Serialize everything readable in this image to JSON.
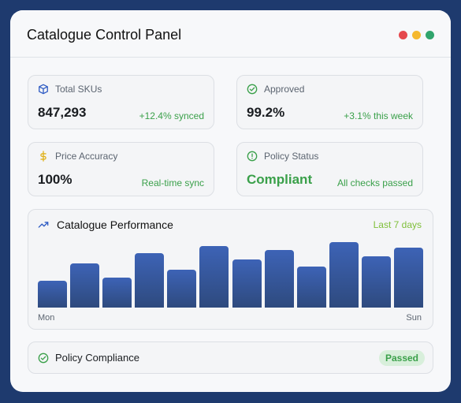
{
  "window": {
    "title": "Catalogue Control Panel",
    "controls": [
      {
        "name": "close",
        "color": "#e5484d"
      },
      {
        "name": "minimize",
        "color": "#f5b82e"
      },
      {
        "name": "maximize",
        "color": "#30a46c"
      }
    ]
  },
  "stats": [
    {
      "label": "Total SKUs",
      "value": "847,293",
      "sub": "+12.4% synced",
      "icon": "box-icon"
    },
    {
      "label": "Approved",
      "value": "99.2%",
      "sub": "+3.1% this week",
      "icon": "check-circle-icon"
    },
    {
      "label": "Price Accuracy",
      "value": "100%",
      "sub": "Real-time sync",
      "icon": "dollar-icon"
    },
    {
      "label": "Policy Status",
      "value": "Compliant",
      "sub": "All checks passed",
      "icon": "alert-circle-icon"
    }
  ],
  "performance": {
    "title": "Catalogue Performance",
    "range": "Last 7 days",
    "start_label": "Mon",
    "end_label": "Sun",
    "icon": "trend-up-icon"
  },
  "chart_data": {
    "type": "bar",
    "title": "Catalogue Performance",
    "values": [
      42,
      68,
      47,
      84,
      58,
      95,
      74,
      89,
      63,
      101,
      79,
      93
    ],
    "ylim": [
      0,
      105
    ],
    "color": "#3d63b6"
  },
  "policy": {
    "label": "Policy Compliance",
    "badge": "Passed",
    "icon": "check-circle-icon"
  },
  "colors": {
    "frame": "#1e3a6e",
    "accent_green": "#3aa04a",
    "bar_blue": "#3d63b6"
  }
}
